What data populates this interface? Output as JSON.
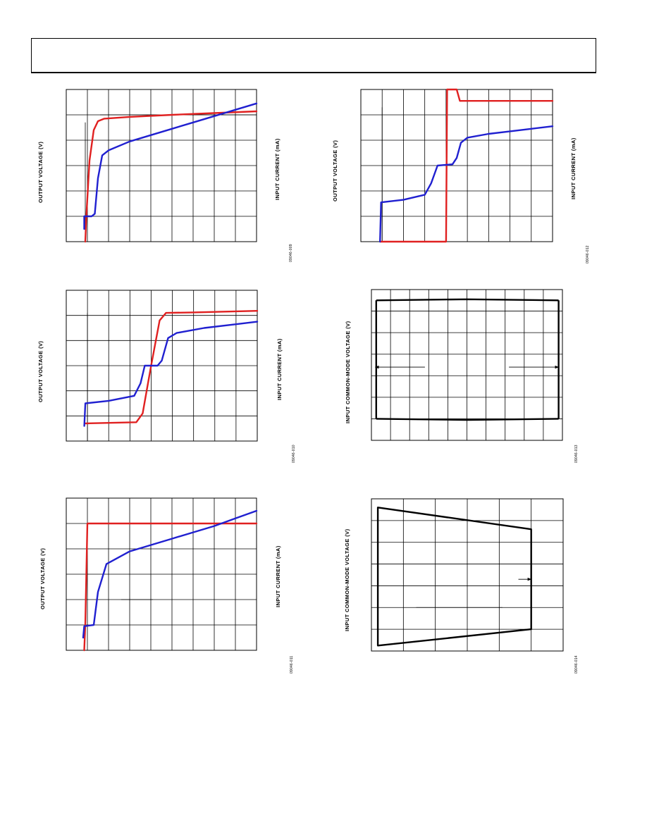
{
  "charts": [
    {
      "id": "c1",
      "ylabel": "OUTPUT VOLTAGE (V)",
      "y2label": "INPUT CURRENT (mA)",
      "fig_code": "09046-009",
      "xlim": [
        0,
        9
      ],
      "ylim": [
        0,
        6
      ],
      "extra_lines": [
        {
          "x1": 1.6,
          "y1": 5.0,
          "x2": 9.0,
          "y2": 5.0
        },
        {
          "x1": 0.9,
          "y1": 4.7,
          "x2": 0.9,
          "y2": 0
        }
      ],
      "series": [
        {
          "color": "#e02020",
          "points": [
            [
              0.9,
              0
            ],
            [
              0.95,
              1.0
            ],
            [
              1.1,
              3.2
            ],
            [
              1.3,
              4.4
            ],
            [
              1.5,
              4.75
            ],
            [
              1.8,
              4.85
            ],
            [
              3,
              4.92
            ],
            [
              5,
              5.0
            ],
            [
              7,
              5.07
            ],
            [
              9,
              5.14
            ]
          ]
        },
        {
          "color": "#2020d0",
          "points": [
            [
              0.85,
              0.5
            ],
            [
              0.85,
              1.0
            ],
            [
              1.2,
              1.0
            ],
            [
              1.35,
              1.1
            ],
            [
              1.5,
              2.5
            ],
            [
              1.7,
              3.4
            ],
            [
              2.0,
              3.6
            ],
            [
              3,
              3.95
            ],
            [
              4,
              4.2
            ],
            [
              5,
              4.45
            ],
            [
              6,
              4.7
            ],
            [
              7,
              4.95
            ],
            [
              8,
              5.2
            ],
            [
              9,
              5.45
            ]
          ]
        }
      ]
    },
    {
      "id": "c2",
      "ylabel": "OUTPUT VOLTAGE (V)",
      "y2label": "INPUT CURRENT (mA)",
      "fig_code": "09046-012",
      "xlim": [
        0,
        9
      ],
      "ylim": [
        0,
        6
      ],
      "extra_lines": [
        {
          "x1": 1.0,
          "y1": 5.3,
          "x2": 1.0,
          "y2": 0
        }
      ],
      "series": [
        {
          "color": "#e02020",
          "points": [
            [
              0.9,
              0
            ],
            [
              4.0,
              0
            ],
            [
              4.05,
              6.0
            ],
            [
              4.5,
              6.0
            ],
            [
              4.65,
              5.55
            ],
            [
              9,
              5.55
            ]
          ]
        },
        {
          "color": "#2020d0",
          "points": [
            [
              0.9,
              0
            ],
            [
              0.95,
              1.55
            ],
            [
              2,
              1.65
            ],
            [
              3.0,
              1.85
            ],
            [
              3.3,
              2.3
            ],
            [
              3.6,
              3.0
            ],
            [
              4.3,
              3.05
            ],
            [
              4.5,
              3.3
            ],
            [
              4.7,
              3.9
            ],
            [
              5.0,
              4.1
            ],
            [
              6,
              4.25
            ],
            [
              7,
              4.35
            ],
            [
              8,
              4.45
            ],
            [
              9,
              4.55
            ]
          ]
        }
      ]
    },
    {
      "id": "c3",
      "ylabel": "OUTPUT VOLTAGE (V)",
      "y2label": "INPUT CURRENT (mA)",
      "fig_code": "09046-010",
      "xlim": [
        0,
        9
      ],
      "ylim": [
        0,
        6
      ],
      "extra_lines": [
        {
          "x1": 1.0,
          "y1": 5.1,
          "x2": 1.0,
          "y2": 0
        }
      ],
      "series": [
        {
          "color": "#e02020",
          "points": [
            [
              0.9,
              0.7
            ],
            [
              3.3,
              0.75
            ],
            [
              3.6,
              1.1
            ],
            [
              4.0,
              3.0
            ],
            [
              4.4,
              4.8
            ],
            [
              4.7,
              5.1
            ],
            [
              6,
              5.12
            ],
            [
              9,
              5.18
            ]
          ]
        },
        {
          "color": "#2020d0",
          "points": [
            [
              0.85,
              0.6
            ],
            [
              0.9,
              1.5
            ],
            [
              2,
              1.6
            ],
            [
              3.2,
              1.8
            ],
            [
              3.5,
              2.3
            ],
            [
              3.7,
              3.0
            ],
            [
              4.3,
              3.0
            ],
            [
              4.5,
              3.2
            ],
            [
              4.8,
              4.1
            ],
            [
              5.2,
              4.3
            ],
            [
              6.5,
              4.5
            ],
            [
              8,
              4.65
            ],
            [
              9,
              4.75
            ]
          ]
        }
      ]
    },
    {
      "id": "c4",
      "ylabel": "INPUT COMMON-MODE VOLTAGE (V)",
      "y2label": "",
      "fig_code": "09046-013",
      "xlim": [
        0,
        10
      ],
      "ylim": [
        0,
        7
      ],
      "arrows": [
        {
          "x1": 2.8,
          "y1": 3.4,
          "x2": 0.2,
          "y2": 3.4
        },
        {
          "x1": 7.2,
          "y1": 3.4,
          "x2": 9.8,
          "y2": 3.4
        }
      ],
      "shapes": [
        {
          "color": "#000000",
          "closed": false,
          "points": [
            [
              0.25,
              6.5
            ],
            [
              5,
              6.55
            ],
            [
              9.8,
              6.5
            ]
          ]
        },
        {
          "color": "#000000",
          "closed": false,
          "points": [
            [
              0.25,
              1.0
            ],
            [
              5,
              0.95
            ],
            [
              9.8,
              1.0
            ]
          ]
        },
        {
          "color": "#000000",
          "closed": false,
          "points": [
            [
              0.25,
              6.5
            ],
            [
              0.25,
              1.0
            ]
          ]
        },
        {
          "color": "#000000",
          "closed": false,
          "points": [
            [
              9.8,
              6.5
            ],
            [
              9.8,
              1.0
            ]
          ]
        }
      ]
    },
    {
      "id": "c5",
      "ylabel": "OUTPUT VOLTAGE (V)",
      "y2label": "INPUT CURRENT (mA)",
      "fig_code": "09046-011",
      "xlim": [
        0,
        9
      ],
      "ylim": [
        0,
        6
      ],
      "extra_lines": [
        {
          "x1": 2.6,
          "y1": 2.0,
          "x2": 4.1,
          "y2": 2.0
        }
      ],
      "series": [
        {
          "color": "#e02020",
          "points": [
            [
              0.85,
              0
            ],
            [
              0.9,
              1.0
            ],
            [
              1.0,
              5.0
            ],
            [
              9,
              5.0
            ]
          ]
        },
        {
          "color": "#2020d0",
          "points": [
            [
              0.8,
              0.5
            ],
            [
              0.85,
              0.95
            ],
            [
              1.3,
              1.0
            ],
            [
              1.5,
              2.3
            ],
            [
              1.9,
              3.4
            ],
            [
              3,
              3.9
            ],
            [
              4,
              4.15
            ],
            [
              5,
              4.4
            ],
            [
              6,
              4.65
            ],
            [
              7,
              4.9
            ],
            [
              8,
              5.2
            ],
            [
              9,
              5.5
            ]
          ]
        }
      ]
    },
    {
      "id": "c6",
      "ylabel": "INPUT COMMON-MODE VOLTAGE (V)",
      "y2label": "",
      "fig_code": "09046-014",
      "xlim": [
        0,
        6
      ],
      "ylim": [
        0,
        7
      ],
      "arrows": [
        {
          "x1": 4.6,
          "y1": 3.3,
          "x2": 5.0,
          "y2": 3.3
        }
      ],
      "extra_lines": [
        {
          "x1": 1.4,
          "y1": 2.0,
          "x2": 4.1,
          "y2": 2.0
        }
      ],
      "shapes": [
        {
          "color": "#000000",
          "closed": true,
          "points": [
            [
              0.2,
              6.6
            ],
            [
              5.0,
              5.6
            ],
            [
              5.0,
              1.0
            ],
            [
              0.2,
              0.25
            ]
          ]
        }
      ]
    }
  ]
}
